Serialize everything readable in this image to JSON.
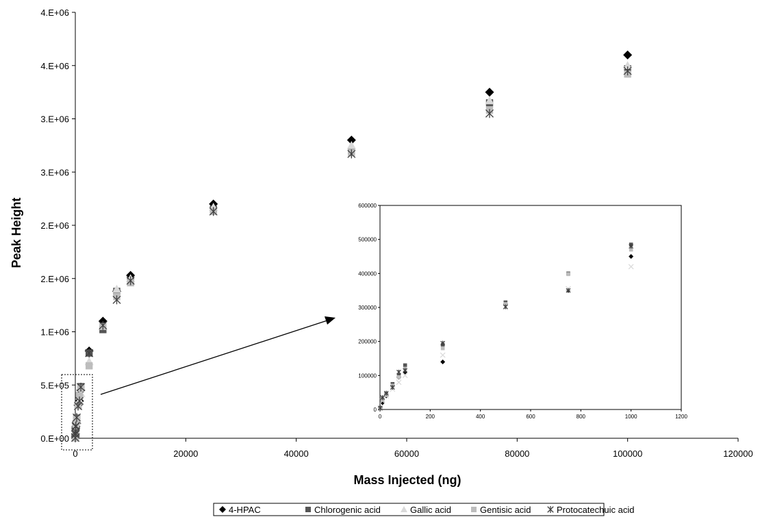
{
  "chart_data": {
    "type": "scatter",
    "xlabel": "Mass Injected (ng)",
    "ylabel": "Peak Height",
    "x_ticks": [
      "0",
      "20000",
      "40000",
      "60000",
      "80000",
      "100000",
      "120000"
    ],
    "y_ticks": [
      "0.E+00",
      "5.E+05",
      "1.E+06",
      "2.E+06",
      "2.E+06",
      "3.E+06",
      "3.E+06",
      "4.E+06",
      "4.E+06"
    ],
    "xlim": [
      0,
      120000
    ],
    "ylim": [
      0,
      4000000
    ],
    "grid": false,
    "legend_position": "bottom",
    "series": [
      {
        "name": "4-HPAC",
        "marker": "diamond",
        "color": "#000000",
        "points": [
          [
            1,
            5000
          ],
          [
            10,
            20000
          ],
          [
            25,
            40000
          ],
          [
            50,
            70000
          ],
          [
            75,
            95000
          ],
          [
            100,
            110000
          ],
          [
            250,
            140000
          ],
          [
            500,
            310000
          ],
          [
            750,
            350000
          ],
          [
            1000,
            450000
          ],
          [
            2500,
            820000
          ],
          [
            5000,
            1100000
          ],
          [
            7500,
            1380000
          ],
          [
            10000,
            1530000
          ],
          [
            25000,
            2200000
          ],
          [
            50000,
            2800000
          ],
          [
            75000,
            3250000
          ],
          [
            100000,
            3600000
          ]
        ]
      },
      {
        "name": "Chlorogenic acid",
        "marker": "square",
        "color": "#555555",
        "points": [
          [
            1,
            5000
          ],
          [
            10,
            30000
          ],
          [
            25,
            45000
          ],
          [
            50,
            75000
          ],
          [
            75,
            100000
          ],
          [
            100,
            130000
          ],
          [
            250,
            190000
          ],
          [
            500,
            315000
          ],
          [
            750,
            400000
          ],
          [
            1000,
            485000
          ],
          [
            2500,
            800000
          ],
          [
            5000,
            1020000
          ],
          [
            7500,
            1380000
          ],
          [
            10000,
            1480000
          ],
          [
            25000,
            2150000
          ],
          [
            50000,
            2700000
          ],
          [
            75000,
            3150000
          ],
          [
            100000,
            3470000
          ]
        ]
      },
      {
        "name": "Gallic acid",
        "marker": "triangle",
        "color": "#d9d9d9",
        "points": [
          [
            1,
            4000
          ],
          [
            10,
            25000
          ],
          [
            25,
            40000
          ],
          [
            50,
            60000
          ],
          [
            75,
            80000
          ],
          [
            100,
            100000
          ],
          [
            250,
            160000
          ],
          [
            500,
            300000
          ],
          [
            750,
            355000
          ],
          [
            1000,
            420000
          ],
          [
            2500,
            720000
          ],
          [
            5000,
            1050000
          ],
          [
            7500,
            1400000
          ],
          [
            10000,
            1500000
          ],
          [
            25000,
            2170000
          ],
          [
            50000,
            2750000
          ],
          [
            75000,
            3170000
          ],
          [
            100000,
            3500000
          ]
        ]
      },
      {
        "name": "Gentisic acid",
        "marker": "square-light",
        "color": "#bdbdbd",
        "points": [
          [
            1,
            3000
          ],
          [
            10,
            28000
          ],
          [
            25,
            42000
          ],
          [
            50,
            70000
          ],
          [
            75,
            95000
          ],
          [
            100,
            120000
          ],
          [
            250,
            180000
          ],
          [
            500,
            310000
          ],
          [
            750,
            398000
          ],
          [
            1000,
            470000
          ],
          [
            2500,
            680000
          ],
          [
            5000,
            1050000
          ],
          [
            7500,
            1330000
          ],
          [
            10000,
            1460000
          ],
          [
            25000,
            2130000
          ],
          [
            50000,
            2680000
          ],
          [
            75000,
            3080000
          ],
          [
            100000,
            3420000
          ]
        ]
      },
      {
        "name": "Protocatechuic acid",
        "marker": "asterisk",
        "color": "#404040",
        "points": [
          [
            1,
            4000
          ],
          [
            10,
            35000
          ],
          [
            25,
            48000
          ],
          [
            50,
            65000
          ],
          [
            75,
            110000
          ],
          [
            100,
            115000
          ],
          [
            250,
            195000
          ],
          [
            500,
            302000
          ],
          [
            750,
            350000
          ],
          [
            1000,
            480000
          ],
          [
            2500,
            800000
          ],
          [
            5000,
            1060000
          ],
          [
            7500,
            1300000
          ],
          [
            10000,
            1480000
          ],
          [
            25000,
            2130000
          ],
          [
            50000,
            2670000
          ],
          [
            75000,
            3050000
          ],
          [
            100000,
            3450000
          ]
        ]
      }
    ],
    "inset": {
      "x_ticks": [
        "0",
        "200",
        "400",
        "600",
        "800",
        "1000",
        "1200"
      ],
      "y_ticks": [
        "0",
        "100000",
        "200000",
        "300000",
        "400000",
        "500000",
        "600000"
      ],
      "xlim": [
        0,
        1200
      ],
      "ylim": [
        0,
        600000
      ]
    }
  }
}
